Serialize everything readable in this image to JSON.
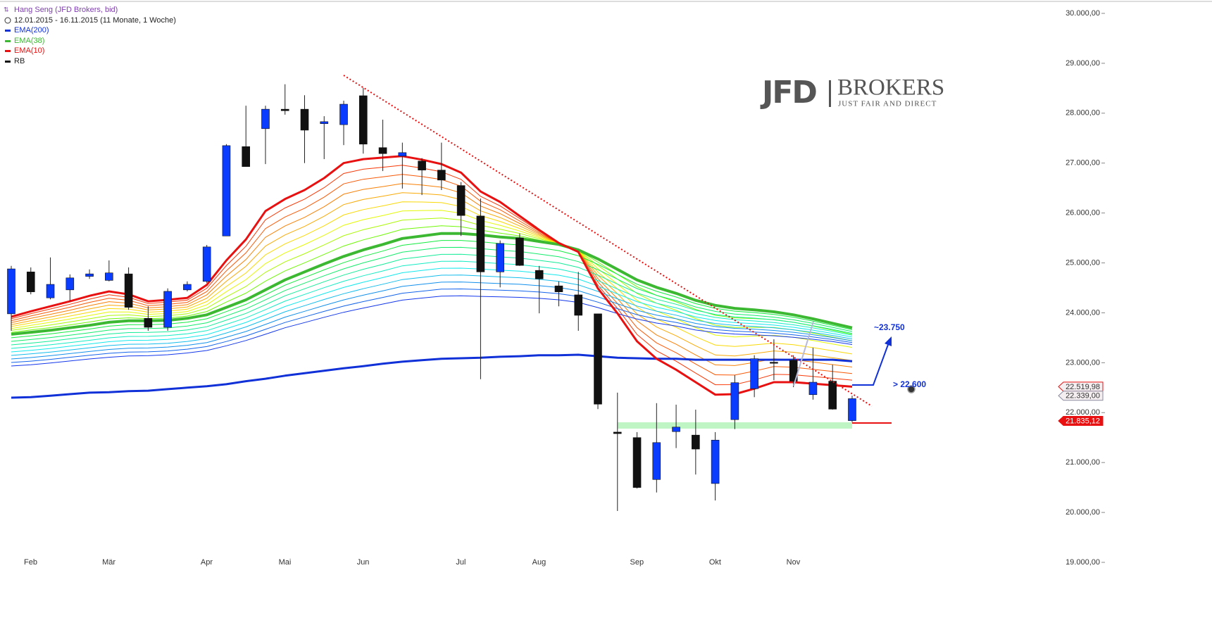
{
  "chart_data": {
    "type": "candlestick",
    "title": "Hang Seng (JFD Brokers, bid)",
    "subtitle": "12.01.2015 - 16.11.2015 (11 Monate, 1 Woche)",
    "ylim": [
      19000,
      30000
    ],
    "yticks": [
      {
        "value": 19000,
        "label": "19.000,00"
      },
      {
        "value": 20000,
        "label": "20.000,00"
      },
      {
        "value": 21000,
        "label": "21.000,00"
      },
      {
        "value": 22000,
        "label": "22.000,00"
      },
      {
        "value": 23000,
        "label": "23.000,00"
      },
      {
        "value": 24000,
        "label": "24.000,00"
      },
      {
        "value": 25000,
        "label": "25.000,00"
      },
      {
        "value": 26000,
        "label": "26.000,00"
      },
      {
        "value": 27000,
        "label": "27.000,00"
      },
      {
        "value": 28000,
        "label": "28.000,00"
      },
      {
        "value": 29000,
        "label": "29.000,00"
      },
      {
        "value": 30000,
        "label": "30.000,00"
      }
    ],
    "x_labels": [
      "Feb",
      "Mär",
      "Apr",
      "Mai",
      "Jun",
      "Jul",
      "Aug",
      "Sep",
      "Okt",
      "Nov"
    ],
    "candles": {
      "name": "RB",
      "color": "#111111",
      "up_color": "#0a3cff",
      "down_color": "#111111",
      "open": [
        23980,
        24820,
        24300,
        24460,
        24730,
        24650,
        24780,
        23890,
        23710,
        24460,
        24630,
        25540,
        27330,
        27690,
        28080,
        28080,
        27790,
        27770,
        28350,
        27310,
        27140,
        27040,
        26860,
        26550,
        25940,
        24820,
        25500,
        24850,
        24540,
        24360,
        23980,
        21610,
        21500,
        20660,
        21620,
        21550,
        20580,
        21860,
        22480,
        23010,
        23050,
        22360,
        22630,
        21840
      ],
      "high": [
        24940,
        24910,
        25110,
        24770,
        24870,
        25050,
        24910,
        24130,
        24490,
        24630,
        25360,
        27380,
        28150,
        28150,
        28580,
        28360,
        27940,
        28250,
        28510,
        27870,
        27410,
        27100,
        27410,
        26620,
        26290,
        25450,
        25590,
        24940,
        24630,
        24820,
        23980,
        22400,
        21610,
        22190,
        22160,
        22060,
        21610,
        22750,
        23150,
        23470,
        23150,
        23300,
        22960,
        22340
      ],
      "low": [
        23640,
        24370,
        24270,
        24230,
        24680,
        24630,
        24060,
        23640,
        23640,
        24430,
        24600,
        25540,
        26930,
        26980,
        27970,
        27000,
        27080,
        27360,
        27190,
        26840,
        26490,
        26360,
        26460,
        25540,
        22670,
        24510,
        24940,
        23990,
        24130,
        23640,
        22070,
        20030,
        20480,
        20400,
        21290,
        20760,
        20240,
        21670,
        22310,
        22650,
        22510,
        22260,
        22060,
        21810
      ],
      "close": [
        24880,
        24420,
        24570,
        24700,
        24780,
        24800,
        24110,
        23710,
        24430,
        24570,
        25320,
        27350,
        26930,
        28080,
        28050,
        27660,
        27830,
        28180,
        27380,
        27190,
        27210,
        26860,
        26660,
        25950,
        24820,
        25390,
        24950,
        24680,
        24420,
        23950,
        22170,
        21580,
        20500,
        21400,
        21710,
        21270,
        21450,
        22600,
        23080,
        22990,
        22630,
        22610,
        22070,
        22280
      ]
    },
    "series": [
      {
        "name": "EMA(200)",
        "color": "#1030d8",
        "values": [
          22300,
          22310,
          22340,
          22370,
          22400,
          22410,
          22430,
          22440,
          22470,
          22500,
          22530,
          22570,
          22630,
          22680,
          22740,
          22790,
          22840,
          22890,
          22930,
          22980,
          23020,
          23050,
          23080,
          23090,
          23100,
          23120,
          23130,
          23150,
          23150,
          23160,
          23130,
          23100,
          23090,
          23080,
          23080,
          23060,
          23060,
          23060,
          23060,
          23060,
          23060,
          23060,
          23060,
          23030
        ]
      },
      {
        "name": "EMA(38)",
        "color": "#3cb832",
        "values": [
          23570,
          23610,
          23650,
          23700,
          23750,
          23810,
          23840,
          23840,
          23850,
          23890,
          23960,
          24110,
          24260,
          24460,
          24660,
          24820,
          24980,
          25130,
          25260,
          25370,
          25490,
          25540,
          25590,
          25590,
          25560,
          25520,
          25490,
          25430,
          25370,
          25260,
          25080,
          24870,
          24660,
          24510,
          24390,
          24250,
          24150,
          24090,
          24060,
          24020,
          23960,
          23880,
          23790,
          23700
        ]
      },
      {
        "name": "EMA(10)",
        "color": "#e81010",
        "values": [
          23920,
          24030,
          24130,
          24230,
          24340,
          24430,
          24370,
          24230,
          24260,
          24300,
          24560,
          25050,
          25470,
          26040,
          26280,
          26460,
          26700,
          27000,
          27080,
          27110,
          27140,
          27070,
          26980,
          26810,
          26430,
          26220,
          25940,
          25660,
          25400,
          25220,
          24490,
          23990,
          23430,
          23080,
          22860,
          22610,
          22360,
          22370,
          22480,
          22610,
          22610,
          22580,
          22550,
          22520
        ]
      }
    ],
    "price_labels": [
      {
        "value": 22519.98,
        "label": "22.519,98",
        "color": "#e81010",
        "style": "outline"
      },
      {
        "value": 22339.0,
        "label": "22.339,00",
        "color": "#8a8aa0",
        "style": "outline"
      },
      {
        "value": 21835.12,
        "label": "21.835,12",
        "color": "#e81010",
        "style": "filled"
      }
    ],
    "annotations": [
      "~23.750",
      "> 22.600"
    ],
    "logo": {
      "name": "JFD",
      "brand": "BROKERS",
      "tagline": "JUST FAIR AND DIRECT"
    }
  }
}
